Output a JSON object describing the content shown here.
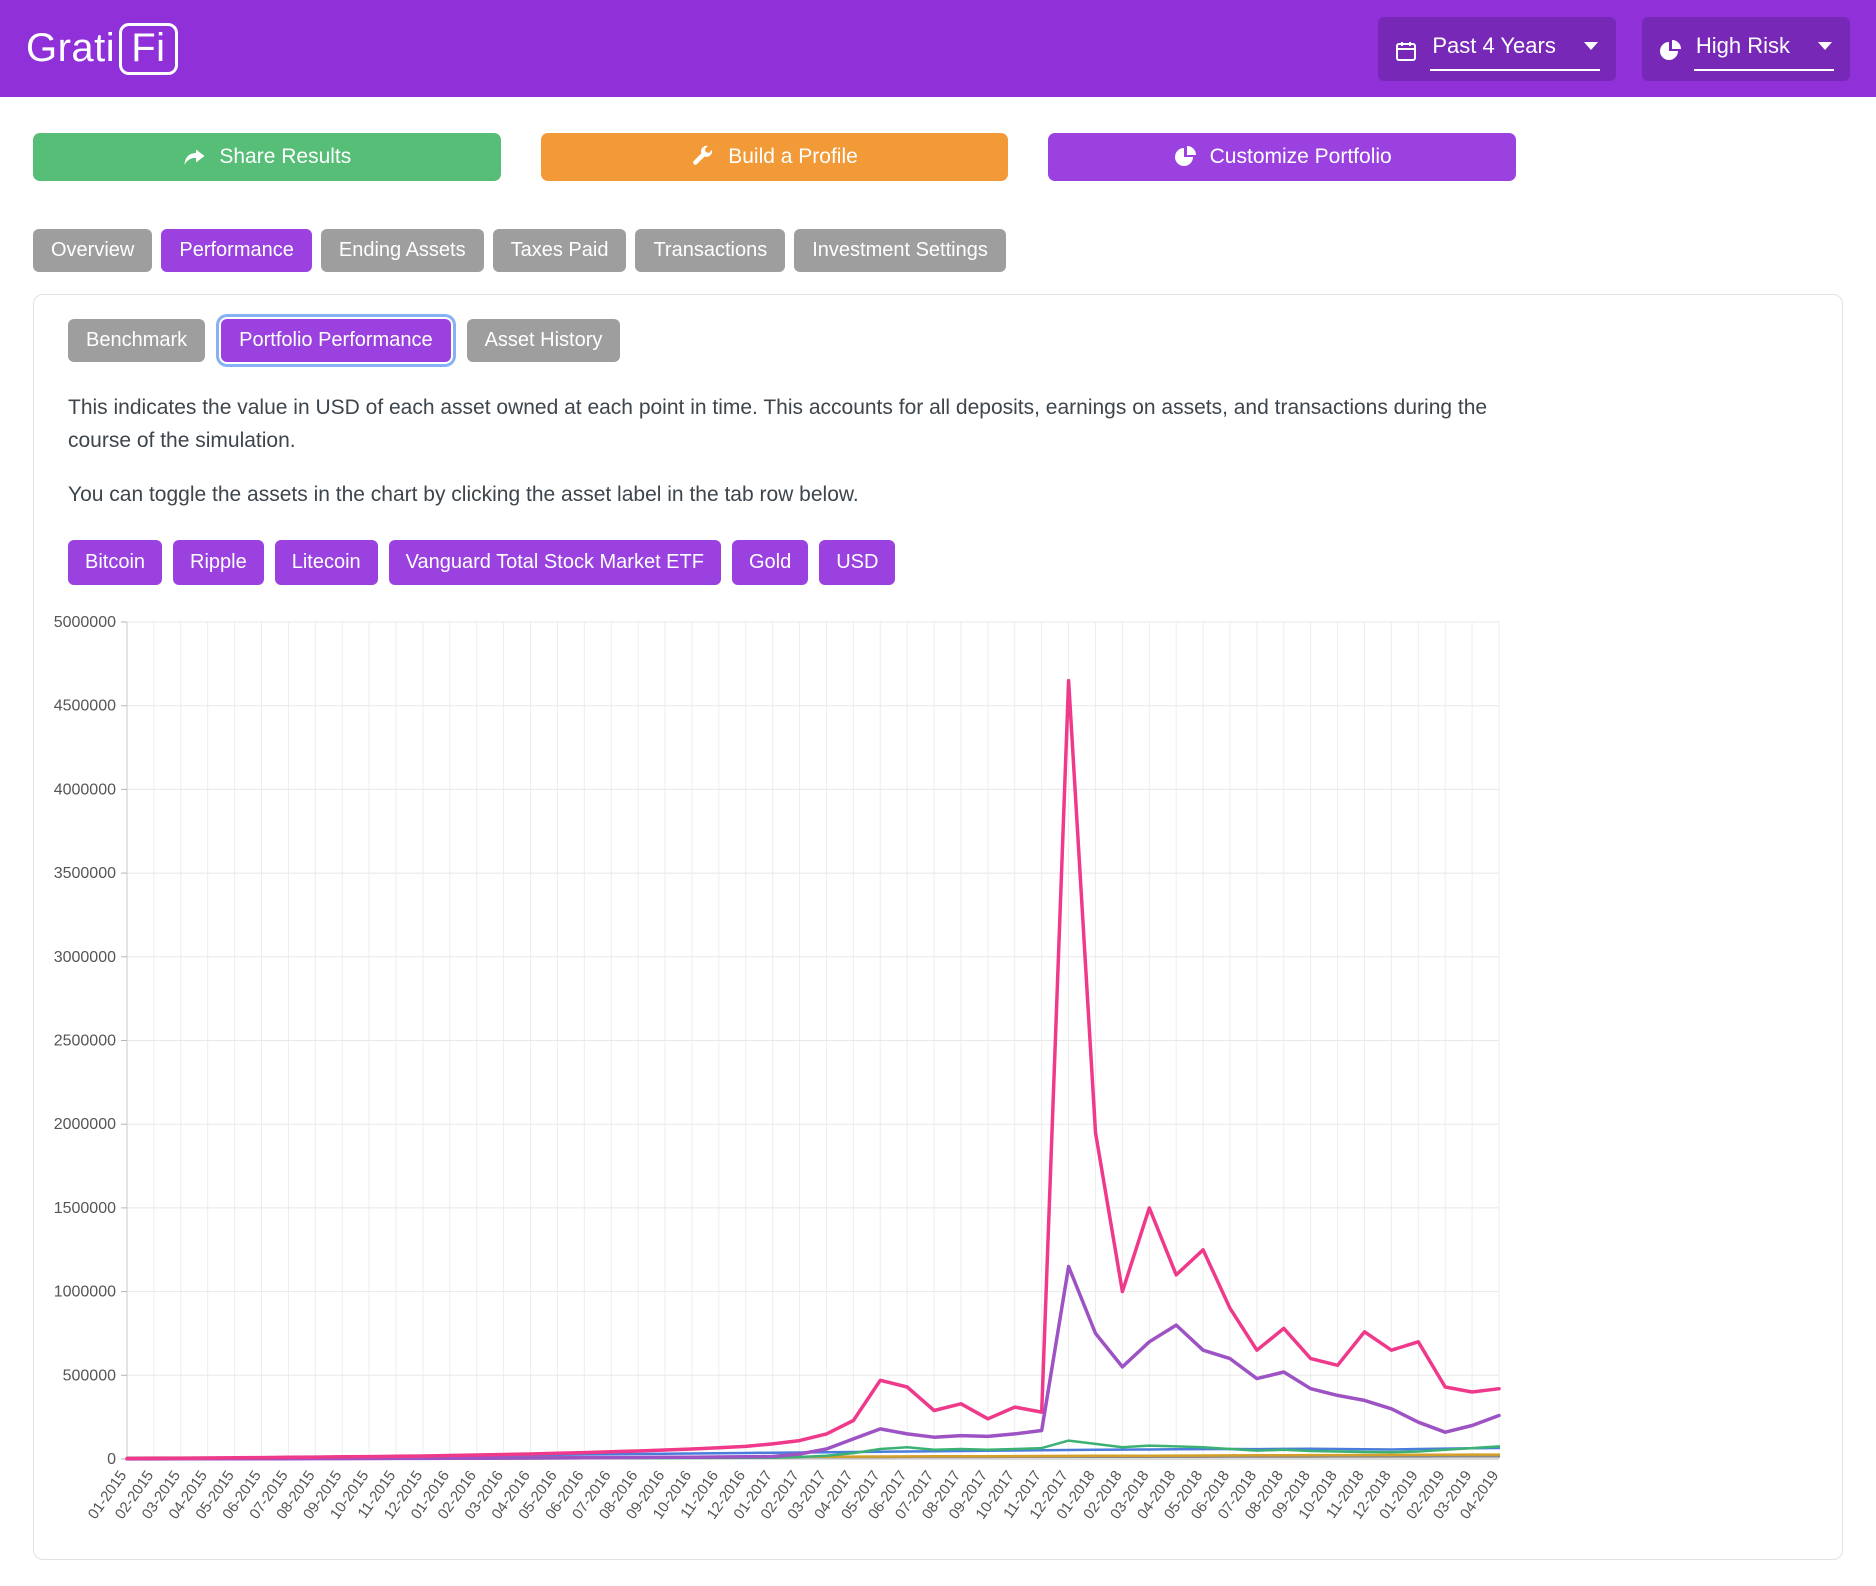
{
  "header": {
    "brand_prefix": "Grati",
    "brand_suffix": "Fi",
    "time_range": "Past 4 Years",
    "risk": "High Risk"
  },
  "icons": {
    "time_range": "calendar-icon",
    "risk": "pie-chart-icon",
    "share": "share-arrow-icon",
    "build": "wrench-icon",
    "customize": "pie-chart-icon"
  },
  "actions": {
    "share": "Share Results",
    "build": "Build a Profile",
    "customize": "Customize Portfolio"
  },
  "tabs": [
    {
      "label": "Overview",
      "active": false
    },
    {
      "label": "Performance",
      "active": true
    },
    {
      "label": "Ending Assets",
      "active": false
    },
    {
      "label": "Taxes Paid",
      "active": false
    },
    {
      "label": "Transactions",
      "active": false
    },
    {
      "label": "Investment Settings",
      "active": false
    }
  ],
  "subtabs": [
    {
      "label": "Benchmark",
      "active": false
    },
    {
      "label": "Portfolio Performance",
      "active": true
    },
    {
      "label": "Asset History",
      "active": false
    }
  ],
  "description": {
    "p1": "This indicates the value in USD of each asset owned at each point in time. This accounts for all deposits, earnings on assets, and transactions during the course of the simulation.",
    "p2": "You can toggle the assets in the chart by clicking the asset label in the tab row below."
  },
  "asset_buttons": [
    "Bitcoin",
    "Ripple",
    "Litecoin",
    "Vanguard Total Stock Market ETF",
    "Gold",
    "USD"
  ],
  "colors": {
    "header_purple": "#8f30d9",
    "button_purple": "#9a41e0",
    "share_green": "#56be77",
    "build_orange": "#f19a37",
    "tab_gray": "#9e9e9e",
    "focus_ring_blue": "#87b1f3"
  },
  "chart_data": {
    "type": "line",
    "title": "",
    "xlabel": "",
    "ylabel": "",
    "grid": true,
    "legend_position": "none",
    "ylim": [
      0,
      5000000
    ],
    "yticks": [
      0,
      500000,
      1000000,
      1500000,
      2000000,
      2500000,
      3000000,
      3500000,
      4000000,
      4500000,
      5000000
    ],
    "x": [
      "01-2015",
      "02-2015",
      "03-2015",
      "04-2015",
      "05-2015",
      "06-2015",
      "07-2015",
      "08-2015",
      "09-2015",
      "10-2015",
      "11-2015",
      "12-2015",
      "01-2016",
      "02-2016",
      "03-2016",
      "04-2016",
      "05-2016",
      "06-2016",
      "07-2016",
      "08-2016",
      "09-2016",
      "10-2016",
      "11-2016",
      "12-2016",
      "01-2017",
      "02-2017",
      "03-2017",
      "04-2017",
      "05-2017",
      "06-2017",
      "07-2017",
      "08-2017",
      "09-2017",
      "10-2017",
      "11-2017",
      "12-2017",
      "01-2018",
      "02-2018",
      "03-2018",
      "04-2018",
      "05-2018",
      "06-2018",
      "07-2018",
      "08-2018",
      "09-2018",
      "10-2018",
      "11-2018",
      "12-2018",
      "01-2019",
      "02-2019",
      "03-2019",
      "04-2019"
    ],
    "series": [
      {
        "name": "USD",
        "color": "#8a8a8a",
        "width": 2.5,
        "values": [
          8000,
          8150,
          8300,
          8450,
          8600,
          8750,
          8900,
          9050,
          9200,
          9350,
          9500,
          9650,
          9800,
          9950,
          10100,
          10250,
          10400,
          10550,
          10700,
          10850,
          11000,
          11150,
          11300,
          11450,
          11600,
          11750,
          11900,
          12050,
          12200,
          12350,
          12500,
          12650,
          12800,
          12950,
          13100,
          13250,
          13400,
          13550,
          13700,
          13850,
          14000,
          14150,
          14300,
          14450,
          14600,
          14750,
          14900,
          15050,
          15200,
          15350,
          15500,
          15650
        ]
      },
      {
        "name": "Gold",
        "color": "#d4a02a",
        "width": 2.5,
        "values": [
          1000,
          1500,
          2000,
          2500,
          3000,
          3500,
          4000,
          4500,
          5000,
          5500,
          6000,
          6500,
          7000,
          7500,
          8000,
          8500,
          9000,
          9500,
          10000,
          10500,
          11000,
          11500,
          12000,
          12500,
          13000,
          13500,
          14000,
          14500,
          15000,
          15500,
          16000,
          16500,
          17000,
          17500,
          18000,
          18500,
          19000,
          19500,
          20000,
          20500,
          21000,
          21500,
          22000,
          22500,
          23000,
          23500,
          24000,
          24500,
          25000,
          25500,
          26000,
          26500
        ]
      },
      {
        "name": "Vanguard Total Stock Market ETF",
        "color": "#4a7ddb",
        "width": 2.5,
        "values": [
          1500,
          3000,
          4500,
          6000,
          7500,
          9000,
          10500,
          12000,
          13500,
          15000,
          16500,
          18000,
          19500,
          21000,
          22500,
          24000,
          25500,
          27000,
          28500,
          30000,
          31500,
          33000,
          34500,
          36000,
          37500,
          39000,
          40500,
          42000,
          43500,
          45000,
          46500,
          48000,
          49500,
          51000,
          52500,
          54000,
          55000,
          56000,
          57000,
          58000,
          59000,
          60000,
          59000,
          60500,
          61500,
          60000,
          58000,
          57000,
          60000,
          62000,
          64000,
          66000
        ]
      },
      {
        "name": "Litecoin",
        "color": "#3bb273",
        "width": 2.5,
        "values": [
          300,
          400,
          500,
          600,
          700,
          850,
          1000,
          1150,
          1300,
          1500,
          1700,
          1900,
          2200,
          2500,
          2800,
          3100,
          3500,
          3900,
          4300,
          4800,
          5300,
          5800,
          6400,
          7000,
          8000,
          12000,
          20000,
          35000,
          60000,
          70000,
          55000,
          60000,
          55000,
          60000,
          65000,
          110000,
          90000,
          70000,
          80000,
          75000,
          70000,
          60000,
          50000,
          55000,
          48000,
          45000,
          42000,
          40000,
          45000,
          55000,
          65000,
          75000
        ]
      },
      {
        "name": "Ripple",
        "color": "#9d53c3",
        "width": 3.5,
        "values": [
          500,
          700,
          900,
          1100,
          1300,
          1600,
          1900,
          2200,
          2500,
          2900,
          3300,
          3800,
          4300,
          4800,
          5400,
          6000,
          6700,
          7400,
          8200,
          9000,
          9900,
          10800,
          11800,
          13000,
          15000,
          30000,
          60000,
          120000,
          180000,
          150000,
          130000,
          140000,
          135000,
          150000,
          170000,
          1150000,
          750000,
          550000,
          700000,
          800000,
          650000,
          600000,
          480000,
          520000,
          420000,
          380000,
          350000,
          300000,
          220000,
          160000,
          200000,
          260000
        ]
      },
      {
        "name": "Bitcoin",
        "color": "#ef3a8b",
        "width": 3.5,
        "values": [
          3000,
          4000,
          5000,
          6000,
          7000,
          8500,
          10000,
          11500,
          13000,
          14500,
          16000,
          18000,
          21000,
          24000,
          27000,
          30000,
          34000,
          38000,
          43000,
          48000,
          54000,
          60000,
          67000,
          75000,
          90000,
          110000,
          150000,
          230000,
          470000,
          430000,
          290000,
          330000,
          240000,
          310000,
          280000,
          4650000,
          1950000,
          1000000,
          1500000,
          1100000,
          1250000,
          900000,
          650000,
          780000,
          600000,
          560000,
          760000,
          650000,
          700000,
          430000,
          400000,
          420000
        ]
      }
    ]
  }
}
